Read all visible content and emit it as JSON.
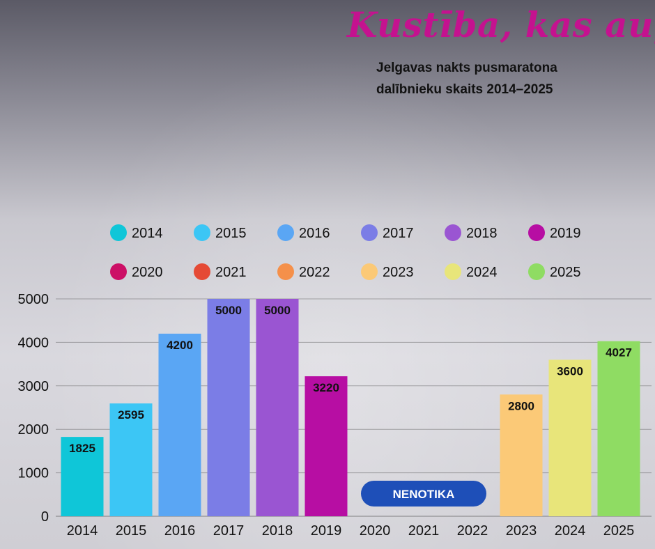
{
  "headline": "Kustība, kas aug",
  "subtitle_lines": [
    "Jelgavas nakts pusmaratona",
    "dalībnieku skaits 2014–2025"
  ],
  "chart_data": {
    "type": "bar",
    "title": "Jelgavas nakts pusmaratona dalībnieku skaits 2014–2025",
    "xlabel": "",
    "ylabel": "",
    "categories": [
      "2014",
      "2015",
      "2016",
      "2017",
      "2018",
      "2019",
      "2020",
      "2021",
      "2022",
      "2023",
      "2024",
      "2025"
    ],
    "values": [
      1825,
      2595,
      4200,
      5000,
      5000,
      3220,
      null,
      null,
      null,
      2800,
      3600,
      4027
    ],
    "data_labels": [
      "1825",
      "2595",
      "4200",
      "5000",
      "5000",
      "3220",
      "",
      "",
      "",
      "2800",
      "3600",
      "4027"
    ],
    "colors": [
      "#0fc6d8",
      "#3cc6f5",
      "#5aa6f4",
      "#7b7de6",
      "#9a55d2",
      "#b70ea3",
      "#cc0f66",
      "#e54a35",
      "#f5904a",
      "#fbc977",
      "#e8e57a",
      "#8fdc63"
    ],
    "y_ticks": [
      "0",
      "1000",
      "2000",
      "3000",
      "4000",
      "5000"
    ],
    "ylim": [
      0,
      5000
    ],
    "grid": true,
    "legend_position": "top",
    "annotation": "NENOTIKA",
    "annotation_color": "#1e4fb8"
  }
}
